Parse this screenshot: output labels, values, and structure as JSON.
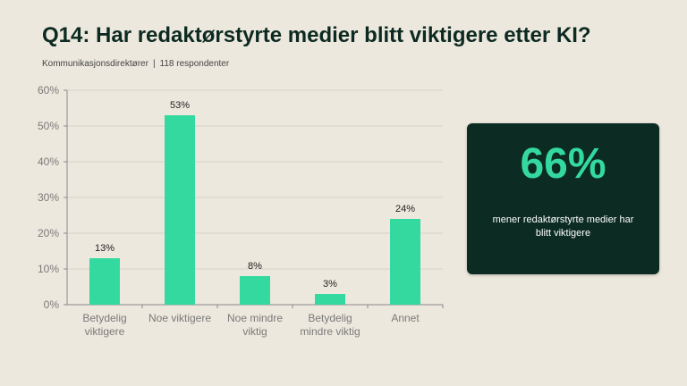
{
  "header": {
    "title": "Q14: Har redaktørstyrte medier blitt viktigere etter KI?",
    "audience": "Kommunikasjonsdirektører",
    "separator": "|",
    "respondents": "118 respondenter"
  },
  "colors": {
    "background": "#ede8dd",
    "bar": "#34d9a0",
    "card": "#0c2b22",
    "title": "#0c2a22"
  },
  "chart_data": {
    "type": "bar",
    "categories": [
      [
        "Betydelig",
        "viktigere"
      ],
      [
        "Noe viktigere"
      ],
      [
        "Noe mindre",
        "viktig"
      ],
      [
        "Betydelig",
        "mindre viktig"
      ],
      [
        "Annet"
      ]
    ],
    "values": [
      13,
      53,
      8,
      3,
      24
    ],
    "value_labels": [
      "13%",
      "53%",
      "8%",
      "3%",
      "24%"
    ],
    "y_ticks": [
      "0%",
      "10%",
      "20%",
      "30%",
      "40%",
      "50%",
      "60%"
    ],
    "ylim": [
      0,
      60
    ],
    "grid": true
  },
  "card": {
    "big_value": "66%",
    "description": "mener redaktørstyrte medier har blitt viktigere"
  }
}
